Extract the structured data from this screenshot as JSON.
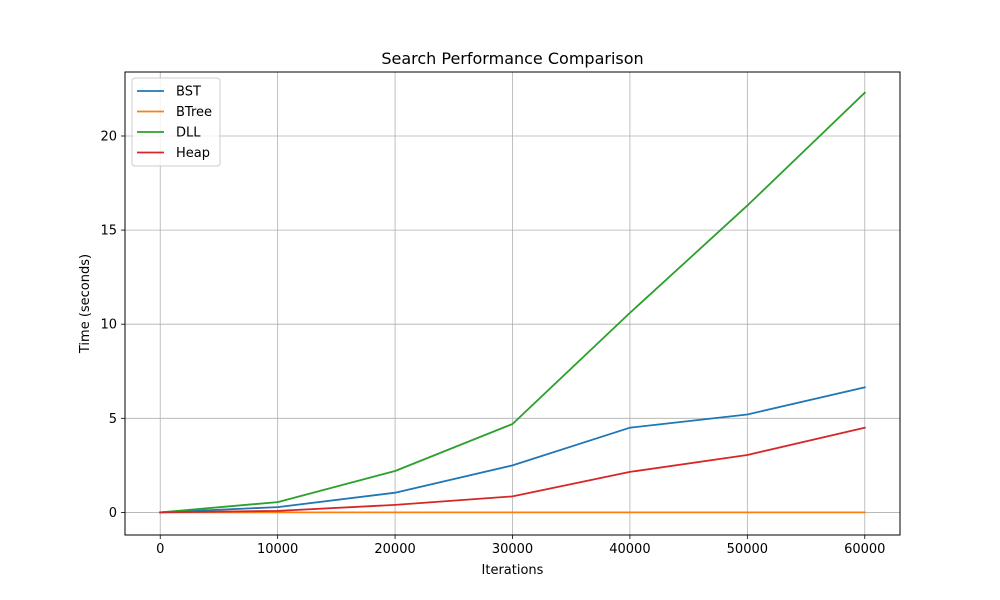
{
  "chart_data": {
    "type": "line",
    "title": "Search Performance Comparison",
    "xlabel": "Iterations",
    "ylabel": "Time (seconds)",
    "x": [
      0,
      10000,
      20000,
      30000,
      40000,
      50000,
      60000
    ],
    "xlim": [
      -3000,
      63000
    ],
    "ylim": [
      -1.2,
      23.4
    ],
    "xticks": [
      0,
      10000,
      20000,
      30000,
      40000,
      50000,
      60000
    ],
    "yticks": [
      0,
      5,
      10,
      15,
      20
    ],
    "grid": true,
    "legend_position": "top-left",
    "series": [
      {
        "name": "BST",
        "color": "#1f77b4",
        "values": [
          0,
          0.28,
          1.05,
          2.5,
          4.5,
          5.2,
          6.65
        ]
      },
      {
        "name": "BTree",
        "color": "#ff7f0e",
        "values": [
          0,
          0.0,
          0.0,
          0.0,
          0.0,
          0.0,
          0.0
        ]
      },
      {
        "name": "DLL",
        "color": "#2ca02c",
        "values": [
          0,
          0.55,
          2.2,
          4.7,
          10.6,
          16.3,
          22.3
        ]
      },
      {
        "name": "Heap",
        "color": "#d62728",
        "values": [
          0,
          0.08,
          0.4,
          0.85,
          2.15,
          3.05,
          4.5
        ]
      }
    ]
  }
}
